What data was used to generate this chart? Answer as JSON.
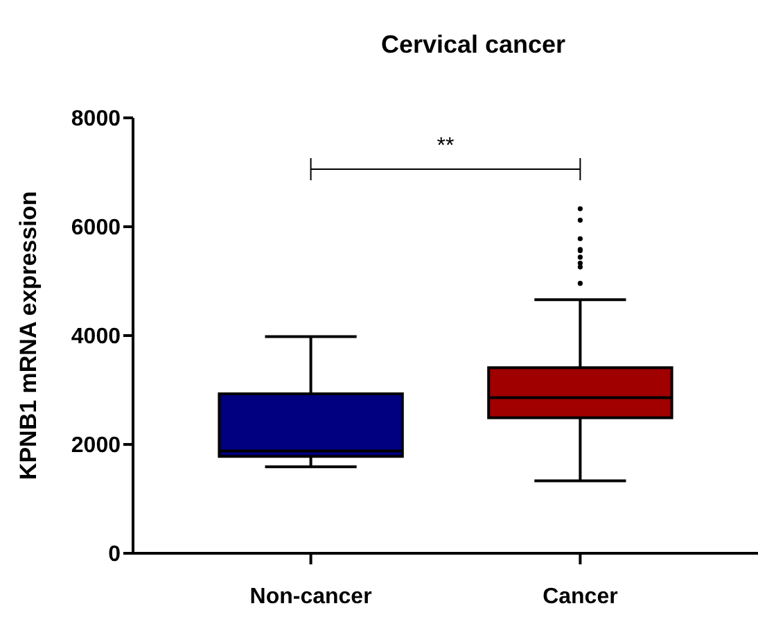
{
  "chart_data": {
    "type": "box",
    "title": "Cervical cancer",
    "ylabel": "KPNB1 mRNA expression",
    "categories": [
      "Non-cancer",
      "Cancer"
    ],
    "colors": [
      "#000080",
      "#a00000"
    ],
    "boxes": [
      {
        "low": 1590,
        "q1": 1780,
        "median": 1880,
        "q3": 2930,
        "high": 3980
      },
      {
        "low": 1330,
        "q1": 2490,
        "median": 2860,
        "q3": 3410,
        "high": 4660,
        "outliers": [
          6330,
          6120,
          5780,
          5580,
          5560,
          5440,
          5330,
          5260,
          4960
        ]
      }
    ],
    "ylim": [
      0,
      8000
    ],
    "yticks": [
      0,
      2000,
      4000,
      6000,
      8000
    ],
    "grid": false,
    "annotations": [
      "**"
    ]
  }
}
